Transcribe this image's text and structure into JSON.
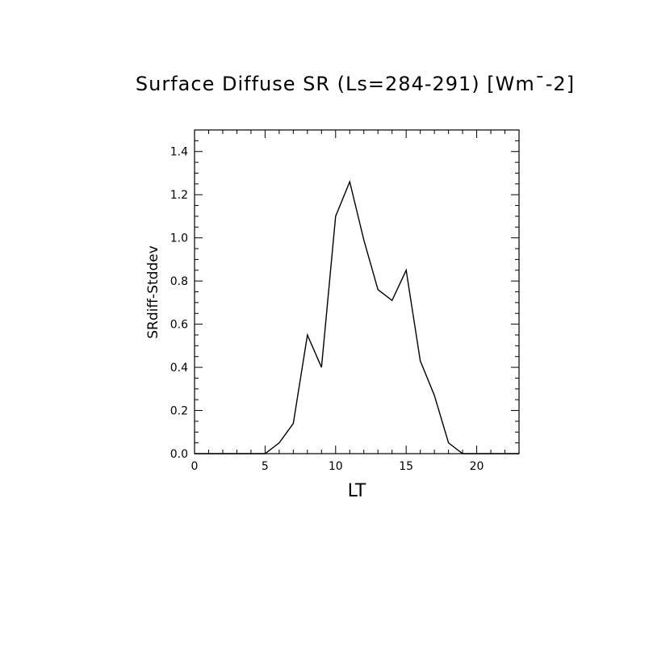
{
  "chart_data": {
    "type": "line",
    "title": "Surface Diffuse SR (Ls=284-291) [Wm¯-2]",
    "xlabel": "LT",
    "ylabel": "SRdiff-Stddev",
    "xlim": [
      0,
      23
    ],
    "ylim": [
      0.0,
      1.5
    ],
    "x_ticks": [
      "0",
      "5",
      "10",
      "15",
      "20"
    ],
    "y_ticks": [
      "0.0",
      "0.2",
      "0.4",
      "0.6",
      "0.8",
      "1.0",
      "1.2",
      "1.4"
    ],
    "grid": false,
    "legend": "none",
    "line_color": "#000000",
    "series": [
      {
        "x": [
          0,
          1,
          2,
          3,
          4,
          5,
          6,
          7,
          8,
          9,
          10,
          11,
          12,
          13,
          14,
          15,
          16,
          17,
          18,
          19,
          20,
          21,
          22,
          23
        ],
        "values": [
          0,
          0,
          0,
          0,
          0,
          0,
          0.05,
          0.14,
          0.55,
          0.4,
          1.1,
          1.26,
          0.99,
          0.76,
          0.71,
          0.85,
          0.43,
          0.27,
          0.05,
          0,
          0,
          0,
          0,
          0
        ]
      }
    ]
  }
}
